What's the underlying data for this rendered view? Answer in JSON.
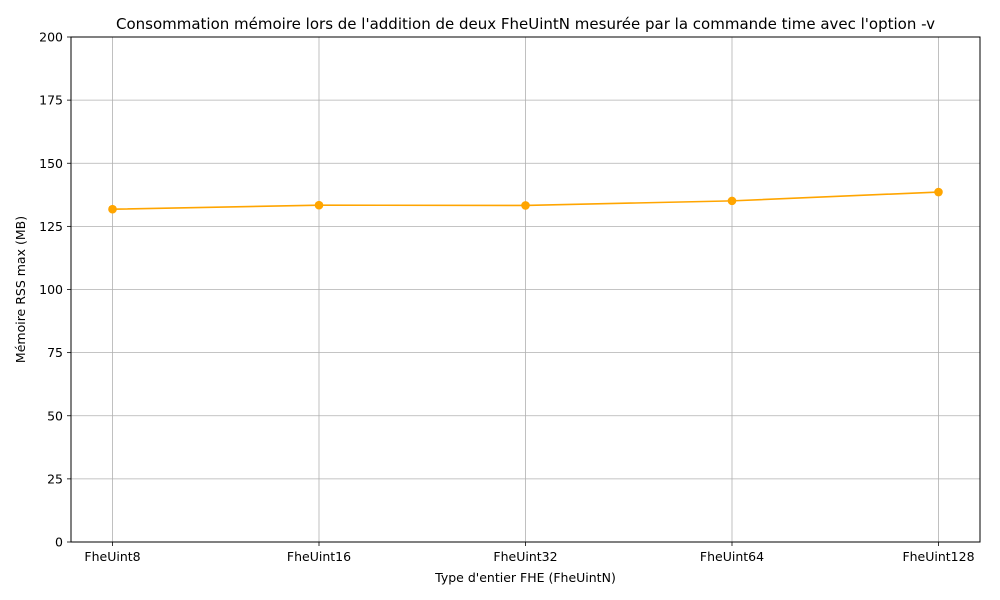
{
  "chart_data": {
    "type": "line",
    "title": "Consommation mémoire lors de l'addition de deux FheUintN mesurée par la commande time avec l'option -v",
    "xlabel": "Type d'entier FHE (FheUintN)",
    "ylabel": "Mémoire RSS max (MB)",
    "categories": [
      "FheUint8",
      "FheUint16",
      "FheUint32",
      "FheUint64",
      "FheUint128"
    ],
    "series": [
      {
        "values": [
          131.8,
          133.4,
          133.3,
          135.1,
          138.6
        ],
        "color": "#FFA500",
        "marker": "circle"
      }
    ],
    "ylim": [
      0,
      200
    ],
    "yticks": [
      0,
      25,
      50,
      75,
      100,
      125,
      150,
      175,
      200
    ],
    "grid": true,
    "legend": "none"
  }
}
